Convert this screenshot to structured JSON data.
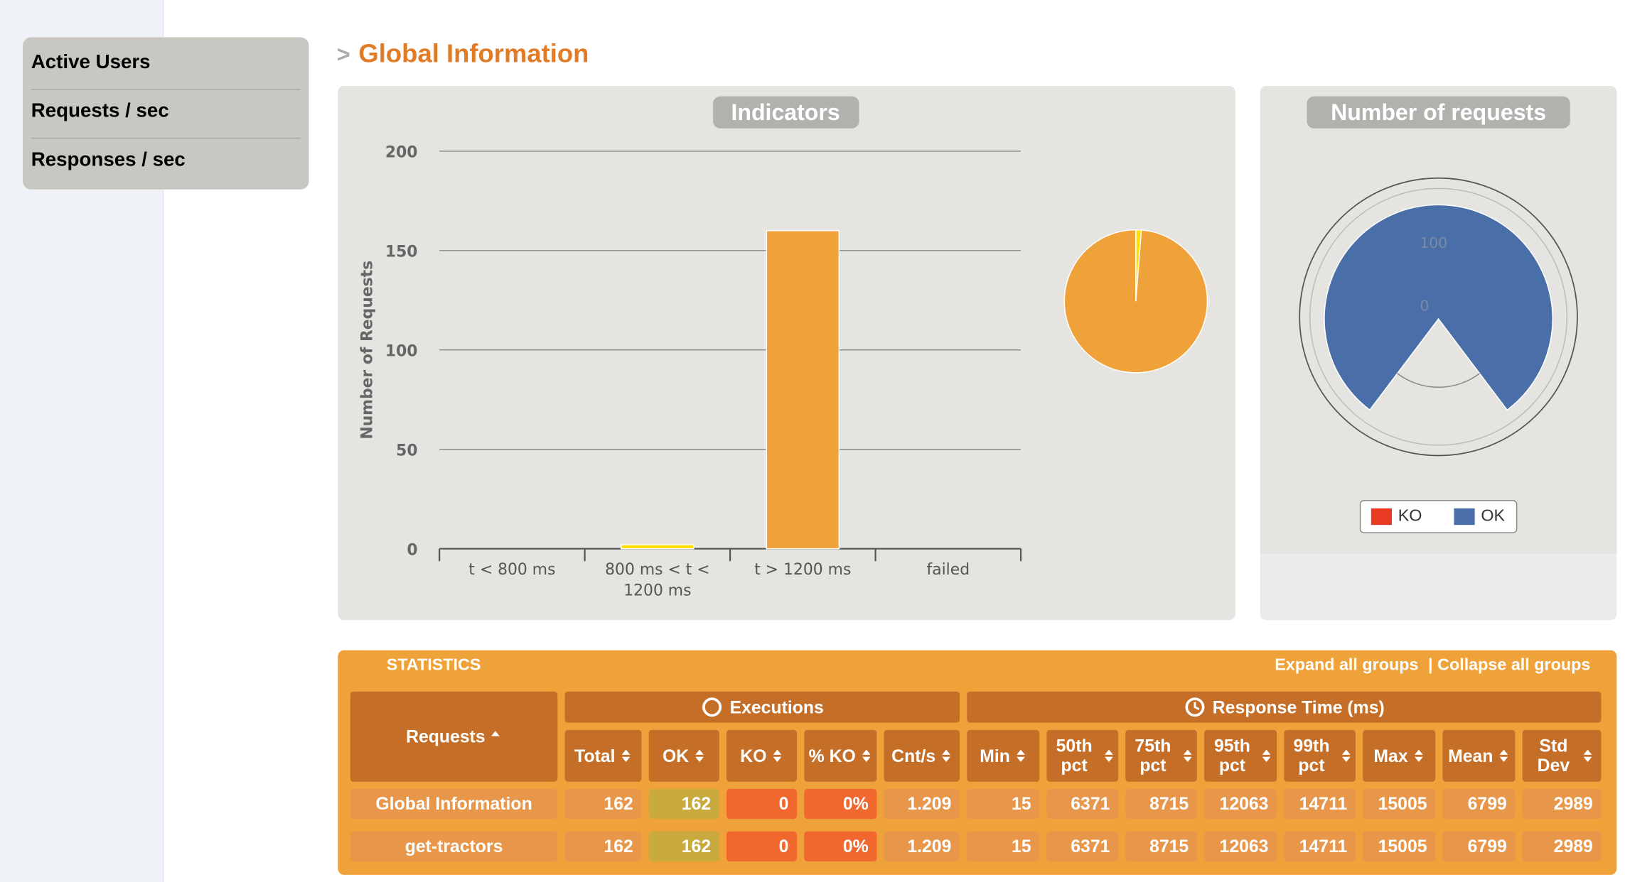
{
  "sidebar": {
    "items": [
      "Active Users",
      "Requests / sec",
      "Responses / sec"
    ]
  },
  "header": {
    "marker": ">",
    "title": "Global Information"
  },
  "indicators": {
    "type": "bar",
    "title": "Indicators",
    "y_label": "Number of Requests",
    "categories": [
      "t < 800 ms",
      "800 ms < t < 1200 ms",
      "t > 1200 ms",
      "failed"
    ],
    "values": [
      0,
      2,
      160,
      0
    ],
    "colors": [
      "#68b65c",
      "#ffdd00",
      "#f0a23a",
      "#f15b4f"
    ],
    "ylim": [
      0,
      200
    ],
    "yticks": [
      0,
      50,
      100,
      150,
      200
    ],
    "grid": true,
    "pie": true
  },
  "requests_chart": {
    "type": "polar-column",
    "title": "Number of requests",
    "series": [
      {
        "name": "KO",
        "color": "#e93a24",
        "value": 0
      },
      {
        "name": "OK",
        "color": "#4a6ea8",
        "value": 162
      }
    ],
    "ylim": [
      0,
      170
    ],
    "yticks": [
      0,
      100
    ]
  },
  "statistics": {
    "title": "STATISTICS",
    "expand": "Expand all groups",
    "separator": "|",
    "collapse": "Collapse all groups",
    "groups": [
      "Executions",
      "Response Time (ms)"
    ],
    "columns": [
      "Requests",
      "Total",
      "OK",
      "KO",
      "% KO",
      "Cnt/s",
      "Min",
      "50th pct",
      "75th pct",
      "95th pct",
      "99th pct",
      "Max",
      "Mean",
      "Std Dev"
    ],
    "rows": [
      [
        "Global Information",
        162,
        162,
        0,
        "0%",
        1.209,
        15,
        6371,
        8715,
        12063,
        14711,
        15005,
        6799,
        2989
      ],
      [
        "get-tractors",
        162,
        162,
        0,
        "0%",
        1.209,
        15,
        6371,
        8715,
        12063,
        14711,
        15005,
        6799,
        2989
      ]
    ]
  }
}
